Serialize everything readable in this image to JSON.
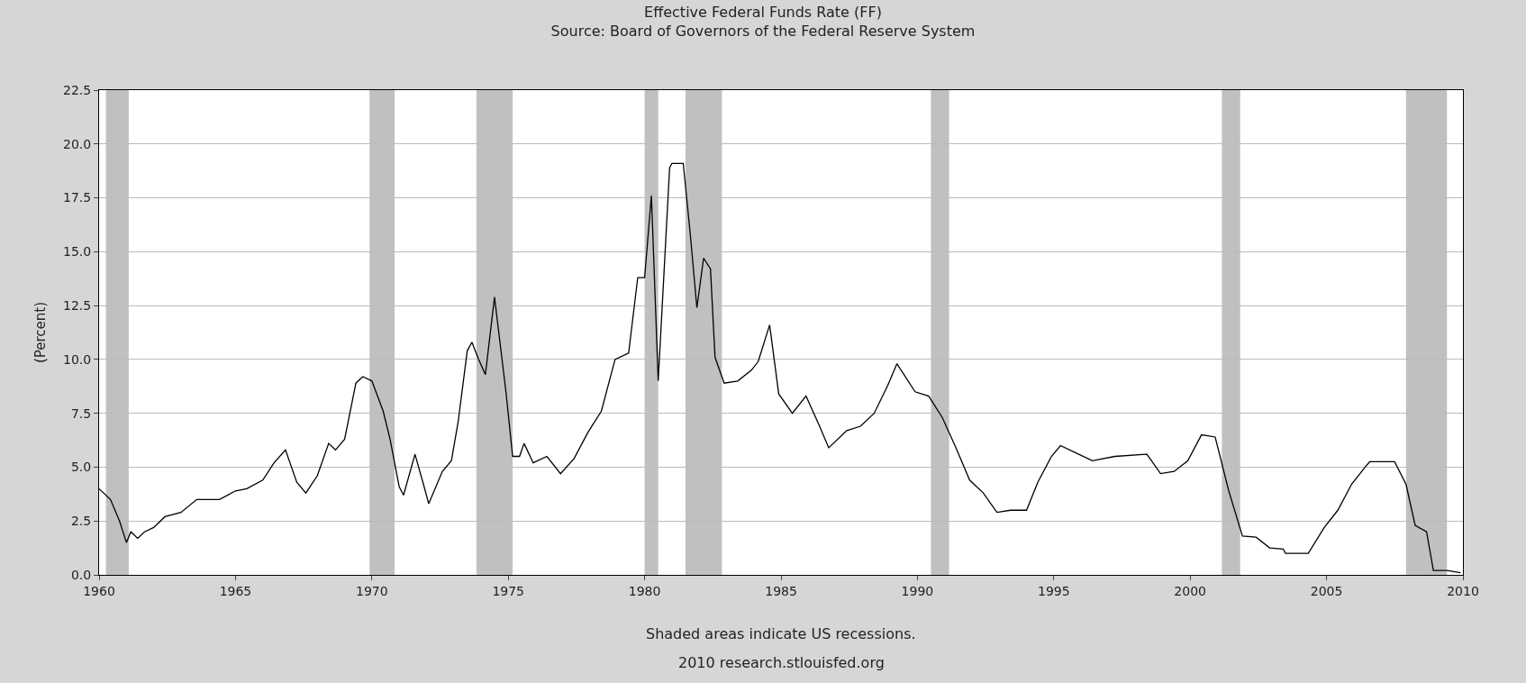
{
  "chart_data": {
    "type": "line",
    "title": "Effective Federal Funds Rate (FF)",
    "subtitle": "Source: Board of Governors of the Federal Reserve System",
    "ylabel": "(Percent)",
    "annotations": [
      "Shaded areas indicate US recessions.",
      "2010 research.stlouisfed.org"
    ],
    "x": [
      "1960-01",
      "1960-06",
      "1960-10",
      "1961-01",
      "1961-03",
      "1961-06",
      "1961-09",
      "1962-01",
      "1962-06",
      "1963-01",
      "1963-08",
      "1964-06",
      "1965-01",
      "1965-06",
      "1966-01",
      "1966-06",
      "1966-11",
      "1967-04",
      "1967-08",
      "1968-01",
      "1968-06",
      "1968-09",
      "1969-01",
      "1969-06",
      "1969-09",
      "1970-01",
      "1970-06",
      "1970-09",
      "1971-01",
      "1971-03",
      "1971-08",
      "1971-12",
      "1972-02",
      "1972-08",
      "1972-12",
      "1973-03",
      "1973-07",
      "1973-09",
      "1973-12",
      "1974-03",
      "1974-07",
      "1974-12",
      "1975-03",
      "1975-06",
      "1975-08",
      "1975-12",
      "1976-06",
      "1976-12",
      "1977-06",
      "1977-12",
      "1978-06",
      "1978-12",
      "1979-06",
      "1979-10",
      "1980-01",
      "1980-04",
      "1980-07",
      "1980-12",
      "1981-01",
      "1981-06",
      "1981-09",
      "1981-12",
      "1982-03",
      "1982-06",
      "1982-08",
      "1982-12",
      "1983-06",
      "1983-12",
      "1984-03",
      "1984-08",
      "1984-12",
      "1985-06",
      "1985-12",
      "1986-06",
      "1986-10",
      "1987-06",
      "1987-12",
      "1988-06",
      "1988-12",
      "1989-04",
      "1989-12",
      "1990-06",
      "1990-12",
      "1991-06",
      "1991-12",
      "1992-06",
      "1992-12",
      "1993-06",
      "1994-01",
      "1994-06",
      "1994-12",
      "1995-04",
      "1995-12",
      "1996-06",
      "1997-04",
      "1998-06",
      "1998-12",
      "1999-06",
      "1999-12",
      "2000-06",
      "2000-12",
      "2001-06",
      "2001-12",
      "2002-06",
      "2002-12",
      "2003-06",
      "2003-07",
      "2004-05",
      "2004-12",
      "2005-06",
      "2005-12",
      "2006-06",
      "2006-08",
      "2007-07",
      "2007-12",
      "2008-04",
      "2008-09",
      "2008-12",
      "2009-06",
      "2009-12"
    ],
    "series": [
      {
        "color": "#000000",
        "values": [
          4.0,
          3.5,
          2.5,
          1.5,
          2.0,
          1.7,
          2.0,
          2.2,
          2.7,
          2.9,
          3.5,
          3.5,
          3.9,
          4.0,
          4.4,
          5.2,
          5.8,
          4.3,
          3.8,
          4.6,
          6.1,
          5.8,
          6.3,
          8.9,
          9.2,
          9.0,
          7.6,
          6.3,
          4.1,
          3.7,
          5.6,
          4.1,
          3.3,
          4.8,
          5.3,
          7.1,
          10.4,
          10.8,
          10.0,
          9.3,
          12.9,
          8.5,
          5.5,
          5.5,
          6.1,
          5.2,
          5.5,
          4.7,
          5.4,
          6.6,
          7.6,
          10.0,
          10.3,
          13.8,
          13.8,
          17.6,
          9.0,
          18.9,
          19.1,
          19.1,
          15.9,
          12.4,
          14.7,
          14.2,
          10.1,
          8.9,
          9.0,
          9.5,
          9.9,
          11.6,
          8.4,
          7.5,
          8.3,
          6.9,
          5.9,
          6.7,
          6.9,
          7.5,
          8.8,
          9.8,
          8.5,
          8.3,
          7.3,
          5.9,
          4.4,
          3.8,
          2.9,
          3.0,
          3.0,
          4.3,
          5.5,
          6.0,
          5.6,
          5.3,
          5.5,
          5.6,
          4.7,
          4.8,
          5.3,
          6.5,
          6.4,
          3.9,
          1.8,
          1.75,
          1.25,
          1.2,
          1.0,
          1.0,
          2.2,
          3.0,
          4.2,
          5.0,
          5.25,
          5.25,
          4.2,
          2.3,
          2.0,
          0.2,
          0.2,
          0.1
        ]
      }
    ],
    "xlim": [
      "1960-01-01",
      "2010-01-01"
    ],
    "xticks": [
      {
        "value": "1960-01-01",
        "label": "1960"
      },
      {
        "value": "1965-01-01",
        "label": "1965"
      },
      {
        "value": "1970-01-01",
        "label": "1970"
      },
      {
        "value": "1975-01-01",
        "label": "1975"
      },
      {
        "value": "1980-01-01",
        "label": "1980"
      },
      {
        "value": "1985-01-01",
        "label": "1985"
      },
      {
        "value": "1990-01-01",
        "label": "1990"
      },
      {
        "value": "1995-01-01",
        "label": "1995"
      },
      {
        "value": "2000-01-01",
        "label": "2000"
      },
      {
        "value": "2005-01-01",
        "label": "2005"
      },
      {
        "value": "2010-01-01",
        "label": "2010"
      }
    ],
    "ylim": [
      0,
      22.5
    ],
    "yticks": [
      {
        "value": 0,
        "label": "0.0"
      },
      {
        "value": 2.5,
        "label": "2.5"
      },
      {
        "value": 5,
        "label": "5.0"
      },
      {
        "value": 7.5,
        "label": "7.5"
      },
      {
        "value": 10,
        "label": "10.0"
      },
      {
        "value": 12.5,
        "label": "12.5"
      },
      {
        "value": 15,
        "label": "15.0"
      },
      {
        "value": 17.5,
        "label": "17.5"
      },
      {
        "value": 20,
        "label": "20.0"
      },
      {
        "value": 22.5,
        "label": "22.5"
      }
    ],
    "grid": "y",
    "line_style": "solid",
    "bands": [
      {
        "axis": "x",
        "from": "1960-04",
        "to": "1961-02",
        "color": "#c0c0c0"
      },
      {
        "axis": "x",
        "from": "1969-12",
        "to": "1970-11",
        "color": "#c0c0c0"
      },
      {
        "axis": "x",
        "from": "1973-11",
        "to": "1975-03",
        "color": "#c0c0c0"
      },
      {
        "axis": "x",
        "from": "1980-01",
        "to": "1980-07",
        "color": "#c0c0c0"
      },
      {
        "axis": "x",
        "from": "1981-07",
        "to": "1982-11",
        "color": "#c0c0c0"
      },
      {
        "axis": "x",
        "from": "1990-07",
        "to": "1991-03",
        "color": "#c0c0c0"
      },
      {
        "axis": "x",
        "from": "2001-03",
        "to": "2001-11",
        "color": "#c0c0c0"
      },
      {
        "axis": "x",
        "from": "2007-12",
        "to": "2009-06",
        "color": "#c0c0c0"
      }
    ]
  }
}
